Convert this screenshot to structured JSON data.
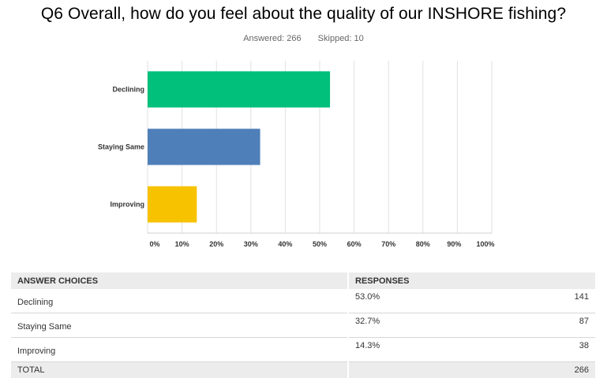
{
  "question": {
    "title": "Q6 Overall, how do you feel about the quality of our INSHORE fishing?",
    "answered": "Answered: 266",
    "skipped": "Skipped: 10"
  },
  "chart_data": {
    "type": "bar",
    "orientation": "horizontal",
    "categories": [
      "Declining",
      "Staying Same",
      "Improving"
    ],
    "values": [
      53.0,
      32.7,
      14.3
    ],
    "colors": [
      "#00c07b",
      "#4f7fb8",
      "#f7c200"
    ],
    "xlim": [
      0,
      100
    ],
    "xticks": [
      "0%",
      "10%",
      "20%",
      "30%",
      "40%",
      "50%",
      "60%",
      "70%",
      "80%",
      "90%",
      "100%"
    ],
    "grid": true
  },
  "table": {
    "headers": {
      "choice": "ANSWER CHOICES",
      "responses": "RESPONSES"
    },
    "rows": [
      {
        "choice": "Declining",
        "percent": "53.0%",
        "count": "141"
      },
      {
        "choice": "Staying Same",
        "percent": "32.7%",
        "count": "87"
      },
      {
        "choice": "Improving",
        "percent": "14.3%",
        "count": "38"
      }
    ],
    "total": {
      "label": "TOTAL",
      "count": "266"
    }
  }
}
